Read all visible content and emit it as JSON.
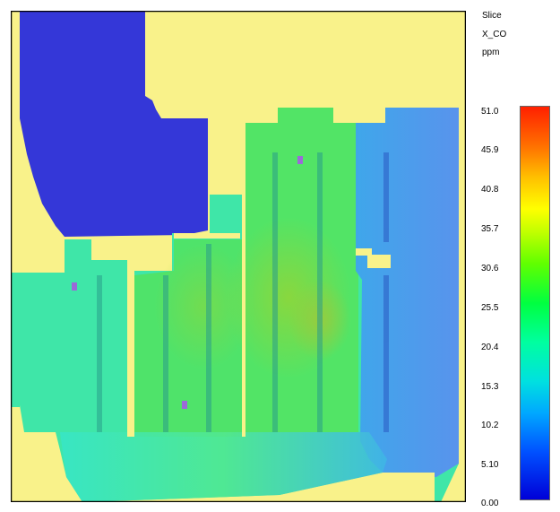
{
  "header": {
    "slice_label": "Slice",
    "quantity": "X_CO",
    "unit": "ppm"
  },
  "colorbar": {
    "ticks": [
      "51.0",
      "45.9",
      "40.8",
      "35.7",
      "30.6",
      "25.5",
      "20.4",
      "15.3",
      "10.2",
      "5.10",
      "0.00"
    ],
    "min": 0.0,
    "max": 51.0
  },
  "colors": {
    "background_region": "#f9f28a",
    "blue_region": "#3437d8",
    "border": "#000000"
  }
}
